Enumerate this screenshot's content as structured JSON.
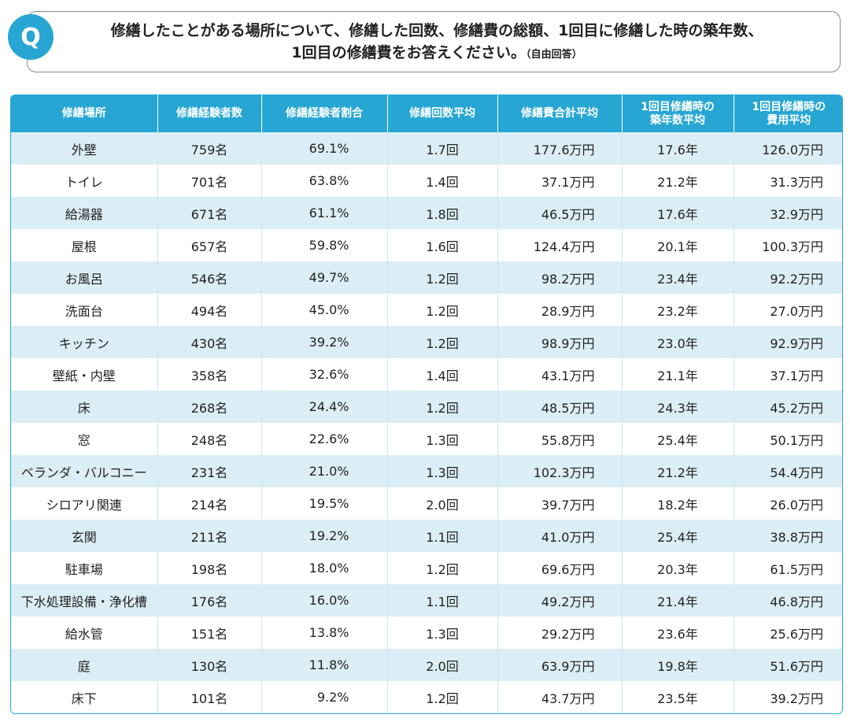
{
  "question": {
    "badge": "Q",
    "line1": "修繕したことがある場所について、修繕した回数、修繕費の総額、1回目に修繕した時の築年数、",
    "line2": "1回目の修繕費をお答えください。",
    "note": "（自由回答）"
  },
  "table": {
    "headers": [
      "修繕場所",
      "修繕経験者数",
      "修繕経験者割合",
      "修繕回数平均",
      "修繕費合計平均",
      "1回目修繕時の\n築年数平均",
      "1回目修繕時の\n費用平均"
    ],
    "rows": [
      [
        "外壁",
        "759名",
        "69.1%",
        "1.7回",
        "177.6万円",
        "17.6年",
        "126.0万円"
      ],
      [
        "トイレ",
        "701名",
        "63.8%",
        "1.4回",
        "37.1万円",
        "21.2年",
        "31.3万円"
      ],
      [
        "給湯器",
        "671名",
        "61.1%",
        "1.8回",
        "46.5万円",
        "17.6年",
        "32.9万円"
      ],
      [
        "屋根",
        "657名",
        "59.8%",
        "1.6回",
        "124.4万円",
        "20.1年",
        "100.3万円"
      ],
      [
        "お風呂",
        "546名",
        "49.7%",
        "1.2回",
        "98.2万円",
        "23.4年",
        "92.2万円"
      ],
      [
        "洗面台",
        "494名",
        "45.0%",
        "1.2回",
        "28.9万円",
        "23.2年",
        "27.0万円"
      ],
      [
        "キッチン",
        "430名",
        "39.2%",
        "1.2回",
        "98.9万円",
        "23.0年",
        "92.9万円"
      ],
      [
        "壁紙・内壁",
        "358名",
        "32.6%",
        "1.4回",
        "43.1万円",
        "21.1年",
        "37.1万円"
      ],
      [
        "床",
        "268名",
        "24.4%",
        "1.2回",
        "48.5万円",
        "24.3年",
        "45.2万円"
      ],
      [
        "窓",
        "248名",
        "22.6%",
        "1.3回",
        "55.8万円",
        "25.4年",
        "50.1万円"
      ],
      [
        "ベランダ・バルコニー",
        "231名",
        "21.0%",
        "1.3回",
        "102.3万円",
        "21.2年",
        "54.4万円"
      ],
      [
        "シロアリ関連",
        "214名",
        "19.5%",
        "2.0回",
        "39.7万円",
        "18.2年",
        "26.0万円"
      ],
      [
        "玄関",
        "211名",
        "19.2%",
        "1.1回",
        "41.0万円",
        "25.4年",
        "38.8万円"
      ],
      [
        "駐車場",
        "198名",
        "18.0%",
        "1.2回",
        "69.6万円",
        "20.3年",
        "61.5万円"
      ],
      [
        "下水処理設備・浄化槽",
        "176名",
        "16.0%",
        "1.1回",
        "49.2万円",
        "21.4年",
        "46.8万円"
      ],
      [
        "給水管",
        "151名",
        "13.8%",
        "1.3回",
        "29.2万円",
        "23.6年",
        "25.6万円"
      ],
      [
        "庭",
        "130名",
        "11.8%",
        "2.0回",
        "63.9万円",
        "19.8年",
        "51.6万円"
      ],
      [
        "床下",
        "101名",
        "9.2%",
        "1.2回",
        "43.7万円",
        "23.5年",
        "39.2万円"
      ]
    ]
  },
  "colors": {
    "accent": "#27a6d4",
    "stripe": "#dbeef5"
  }
}
